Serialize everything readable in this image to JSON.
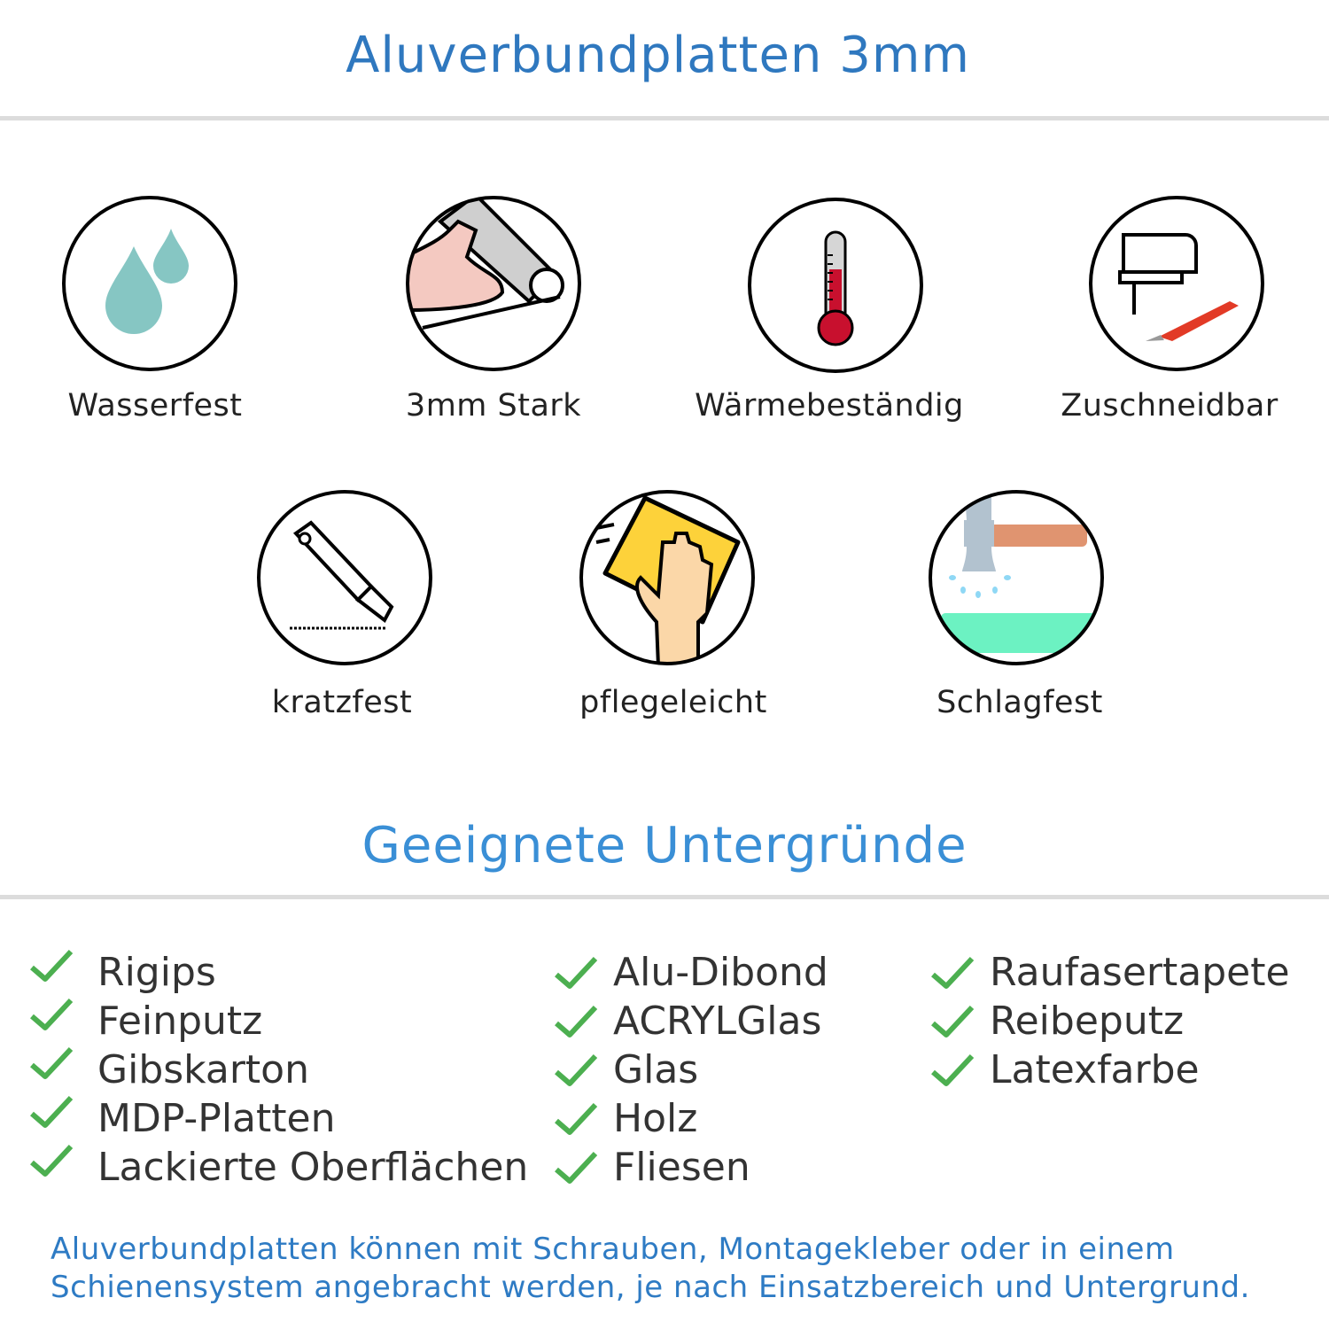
{
  "header": {
    "title": "Aluverbundplatten 3mm"
  },
  "features": [
    {
      "label": "Wasserfest",
      "icon": "water-drops-icon"
    },
    {
      "label": "3mm Stark",
      "icon": "strong-arm-icon"
    },
    {
      "label": "Wärmebeständig",
      "icon": "thermometer-icon"
    },
    {
      "label": "Zuschneidbar",
      "icon": "jigsaw-icon"
    },
    {
      "label": "kratzfest",
      "icon": "cutter-knife-icon"
    },
    {
      "label": "pflegeleicht",
      "icon": "cleaning-hand-icon"
    },
    {
      "label": "Schlagfest",
      "icon": "hammer-icon"
    }
  ],
  "substrates": {
    "title": "Geeignete Untergründe",
    "columns": [
      [
        "Rigips",
        "Feinputz",
        "Gibskarton",
        "MDP-Platten",
        "Lackierte Oberflächen"
      ],
      [
        "Alu-Dibond",
        "ACRYLGlas",
        "Glas",
        "Holz",
        "Fliesen"
      ],
      [
        "Raufasertapete",
        "Reibeputz",
        "Latexfarbe"
      ]
    ]
  },
  "footer": {
    "line1": "Aluverbundplatten können mit Schrauben, Montagekleber oder in einem",
    "line2": "Schienensystem angebracht werden, je nach Einsatzbereich und Untergrund."
  },
  "colors": {
    "title": "#2f78bf",
    "subtitle": "#3a8fd6",
    "check": "#4caf50",
    "footer": "#2e7bc4"
  }
}
